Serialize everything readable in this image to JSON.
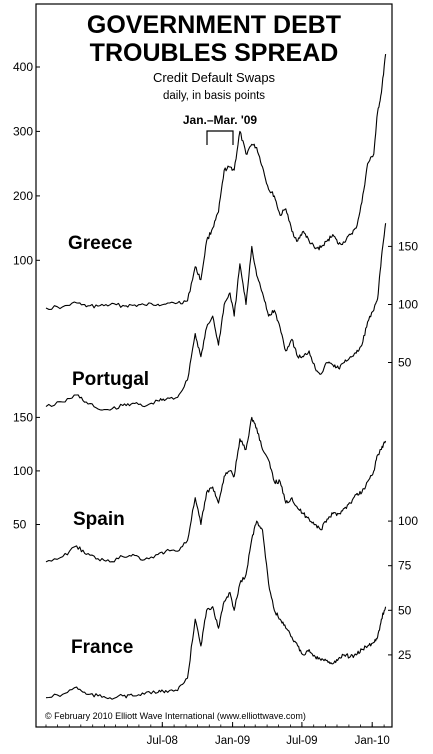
{
  "chart_data": {
    "type": "line",
    "title": "GOVERNMENT DEBT TROUBLES SPREAD",
    "subtitle": "Credit Default Swaps",
    "subtitle2": "daily, in basis points",
    "annotation": "Jan.–Mar. '09",
    "credit": "© February 2010 Elliott Wave International (www.elliottwave.com)",
    "x_ticks": [
      "Jul-08",
      "Jan-09",
      "Jul-09",
      "Jan-10"
    ],
    "x_range": [
      "2007-09",
      "2010-02"
    ],
    "legend": "none",
    "grid": false,
    "series": [
      {
        "name": "Greece",
        "axis": "left",
        "y_ticks": [
          100,
          200,
          300,
          400
        ],
        "ylim": [
          40,
          445
        ],
        "points": [
          [
            "2007-09-01",
            26
          ],
          [
            "2007-10-15",
            28
          ],
          [
            "2007-11-20",
            34
          ],
          [
            "2007-12-15",
            28
          ],
          [
            "2008-01-15",
            29
          ],
          [
            "2008-02-15",
            31
          ],
          [
            "2008-03-20",
            30
          ],
          [
            "2008-04-15",
            30
          ],
          [
            "2008-05-15",
            31
          ],
          [
            "2008-06-20",
            32
          ],
          [
            "2008-07-10",
            32
          ],
          [
            "2008-08-10",
            34
          ],
          [
            "2008-09-05",
            37
          ],
          [
            "2008-09-25",
            90
          ],
          [
            "2008-10-10",
            70
          ],
          [
            "2008-10-25",
            130
          ],
          [
            "2008-11-10",
            150
          ],
          [
            "2008-11-25",
            175
          ],
          [
            "2008-12-10",
            240
          ],
          [
            "2008-12-25",
            245
          ],
          [
            "2009-01-05",
            240
          ],
          [
            "2009-01-20",
            300
          ],
          [
            "2009-02-05",
            265
          ],
          [
            "2009-02-20",
            280
          ],
          [
            "2009-03-05",
            275
          ],
          [
            "2009-03-20",
            245
          ],
          [
            "2009-04-05",
            210
          ],
          [
            "2009-04-20",
            200
          ],
          [
            "2009-05-05",
            170
          ],
          [
            "2009-05-20",
            180
          ],
          [
            "2009-06-05",
            145
          ],
          [
            "2009-06-20",
            130
          ],
          [
            "2009-07-05",
            145
          ],
          [
            "2009-07-20",
            130
          ],
          [
            "2009-08-05",
            118
          ],
          [
            "2009-08-20",
            120
          ],
          [
            "2009-09-05",
            130
          ],
          [
            "2009-09-20",
            140
          ],
          [
            "2009-10-05",
            125
          ],
          [
            "2009-10-20",
            128
          ],
          [
            "2009-11-05",
            140
          ],
          [
            "2009-11-20",
            150
          ],
          [
            "2009-12-05",
            190
          ],
          [
            "2009-12-20",
            250
          ],
          [
            "2010-01-05",
            265
          ],
          [
            "2010-01-15",
            330
          ],
          [
            "2010-01-25",
            360
          ],
          [
            "2010-02-05",
            420
          ]
        ]
      },
      {
        "name": "Portugal",
        "axis": "right",
        "y_ticks": [
          50,
          100,
          150
        ],
        "ylim": [
          -15,
          165
        ],
        "points": [
          [
            "2007-09-01",
            12
          ],
          [
            "2007-10-15",
            16
          ],
          [
            "2007-11-20",
            22
          ],
          [
            "2007-12-15",
            16
          ],
          [
            "2008-01-15",
            10
          ],
          [
            "2008-02-15",
            9
          ],
          [
            "2008-03-20",
            13
          ],
          [
            "2008-04-15",
            15
          ],
          [
            "2008-05-15",
            12
          ],
          [
            "2008-06-20",
            17
          ],
          [
            "2008-07-10",
            18
          ],
          [
            "2008-08-10",
            20
          ],
          [
            "2008-09-05",
            35
          ],
          [
            "2008-09-25",
            75
          ],
          [
            "2008-10-10",
            55
          ],
          [
            "2008-10-25",
            80
          ],
          [
            "2008-11-10",
            90
          ],
          [
            "2008-11-25",
            65
          ],
          [
            "2008-12-10",
            100
          ],
          [
            "2008-12-25",
            110
          ],
          [
            "2009-01-05",
            90
          ],
          [
            "2009-01-20",
            135
          ],
          [
            "2009-02-05",
            100
          ],
          [
            "2009-02-20",
            150
          ],
          [
            "2009-03-05",
            125
          ],
          [
            "2009-03-20",
            110
          ],
          [
            "2009-04-05",
            90
          ],
          [
            "2009-04-20",
            95
          ],
          [
            "2009-05-05",
            80
          ],
          [
            "2009-05-20",
            60
          ],
          [
            "2009-06-05",
            70
          ],
          [
            "2009-06-20",
            55
          ],
          [
            "2009-07-05",
            55
          ],
          [
            "2009-07-20",
            60
          ],
          [
            "2009-08-05",
            45
          ],
          [
            "2009-08-20",
            40
          ],
          [
            "2009-09-05",
            50
          ],
          [
            "2009-09-20",
            48
          ],
          [
            "2009-10-05",
            45
          ],
          [
            "2009-10-20",
            50
          ],
          [
            "2009-11-05",
            55
          ],
          [
            "2009-11-20",
            58
          ],
          [
            "2009-12-05",
            65
          ],
          [
            "2009-12-20",
            85
          ],
          [
            "2010-01-05",
            95
          ],
          [
            "2010-01-15",
            105
          ],
          [
            "2010-01-25",
            140
          ],
          [
            "2010-02-05",
            170
          ]
        ]
      },
      {
        "name": "Spain",
        "axis": "left",
        "y_ticks": [
          50,
          100,
          150
        ],
        "ylim": [
          0,
          170
        ],
        "points": [
          [
            "2007-09-01",
            15
          ],
          [
            "2007-10-15",
            20
          ],
          [
            "2007-11-20",
            30
          ],
          [
            "2007-12-15",
            22
          ],
          [
            "2008-01-15",
            18
          ],
          [
            "2008-02-15",
            15
          ],
          [
            "2008-03-20",
            20
          ],
          [
            "2008-04-15",
            22
          ],
          [
            "2008-05-15",
            17
          ],
          [
            "2008-06-20",
            22
          ],
          [
            "2008-07-10",
            25
          ],
          [
            "2008-08-10",
            25
          ],
          [
            "2008-09-05",
            35
          ],
          [
            "2008-09-25",
            75
          ],
          [
            "2008-10-10",
            50
          ],
          [
            "2008-10-25",
            80
          ],
          [
            "2008-11-10",
            85
          ],
          [
            "2008-11-25",
            70
          ],
          [
            "2008-12-10",
            95
          ],
          [
            "2008-12-25",
            100
          ],
          [
            "2009-01-05",
            95
          ],
          [
            "2009-01-20",
            130
          ],
          [
            "2009-02-05",
            120
          ],
          [
            "2009-02-20",
            150
          ],
          [
            "2009-03-05",
            140
          ],
          [
            "2009-03-20",
            120
          ],
          [
            "2009-04-05",
            110
          ],
          [
            "2009-04-20",
            90
          ],
          [
            "2009-05-05",
            90
          ],
          [
            "2009-05-20",
            70
          ],
          [
            "2009-06-05",
            75
          ],
          [
            "2009-06-20",
            65
          ],
          [
            "2009-07-05",
            60
          ],
          [
            "2009-07-20",
            55
          ],
          [
            "2009-08-05",
            50
          ],
          [
            "2009-08-20",
            45
          ],
          [
            "2009-09-05",
            55
          ],
          [
            "2009-09-20",
            60
          ],
          [
            "2009-10-05",
            60
          ],
          [
            "2009-10-20",
            65
          ],
          [
            "2009-11-05",
            70
          ],
          [
            "2009-11-20",
            78
          ],
          [
            "2009-12-05",
            80
          ],
          [
            "2009-12-20",
            90
          ],
          [
            "2010-01-05",
            100
          ],
          [
            "2010-01-15",
            115
          ],
          [
            "2010-01-25",
            120
          ],
          [
            "2010-02-05",
            128
          ]
        ]
      },
      {
        "name": "France",
        "axis": "right",
        "y_ticks": [
          25,
          50,
          75,
          100
        ],
        "ylim": [
          -7,
          118
        ],
        "points": [
          [
            "2007-09-01",
            1
          ],
          [
            "2007-10-15",
            3
          ],
          [
            "2007-11-20",
            7
          ],
          [
            "2007-12-15",
            3
          ],
          [
            "2008-01-15",
            2
          ],
          [
            "2008-02-15",
            1
          ],
          [
            "2008-03-20",
            2
          ],
          [
            "2008-04-15",
            2
          ],
          [
            "2008-05-15",
            3
          ],
          [
            "2008-06-20",
            4
          ],
          [
            "2008-07-10",
            5
          ],
          [
            "2008-08-10",
            5
          ],
          [
            "2008-09-05",
            12
          ],
          [
            "2008-09-25",
            45
          ],
          [
            "2008-10-10",
            30
          ],
          [
            "2008-10-25",
            50
          ],
          [
            "2008-11-10",
            52
          ],
          [
            "2008-11-25",
            40
          ],
          [
            "2008-12-10",
            55
          ],
          [
            "2008-12-25",
            60
          ],
          [
            "2009-01-05",
            50
          ],
          [
            "2009-01-20",
            65
          ],
          [
            "2009-02-05",
            70
          ],
          [
            "2009-02-20",
            90
          ],
          [
            "2009-03-05",
            100
          ],
          [
            "2009-03-20",
            95
          ],
          [
            "2009-04-05",
            65
          ],
          [
            "2009-04-20",
            50
          ],
          [
            "2009-05-05",
            45
          ],
          [
            "2009-05-20",
            40
          ],
          [
            "2009-06-05",
            35
          ],
          [
            "2009-06-20",
            30
          ],
          [
            "2009-07-05",
            25
          ],
          [
            "2009-07-20",
            28
          ],
          [
            "2009-08-05",
            24
          ],
          [
            "2009-08-20",
            22
          ],
          [
            "2009-09-05",
            22
          ],
          [
            "2009-09-20",
            20
          ],
          [
            "2009-10-05",
            23
          ],
          [
            "2009-10-20",
            25
          ],
          [
            "2009-11-05",
            24
          ],
          [
            "2009-11-20",
            25
          ],
          [
            "2009-12-05",
            28
          ],
          [
            "2009-12-20",
            30
          ],
          [
            "2010-01-05",
            32
          ],
          [
            "2010-01-15",
            35
          ],
          [
            "2010-01-25",
            45
          ],
          [
            "2010-02-05",
            52
          ]
        ]
      }
    ]
  }
}
